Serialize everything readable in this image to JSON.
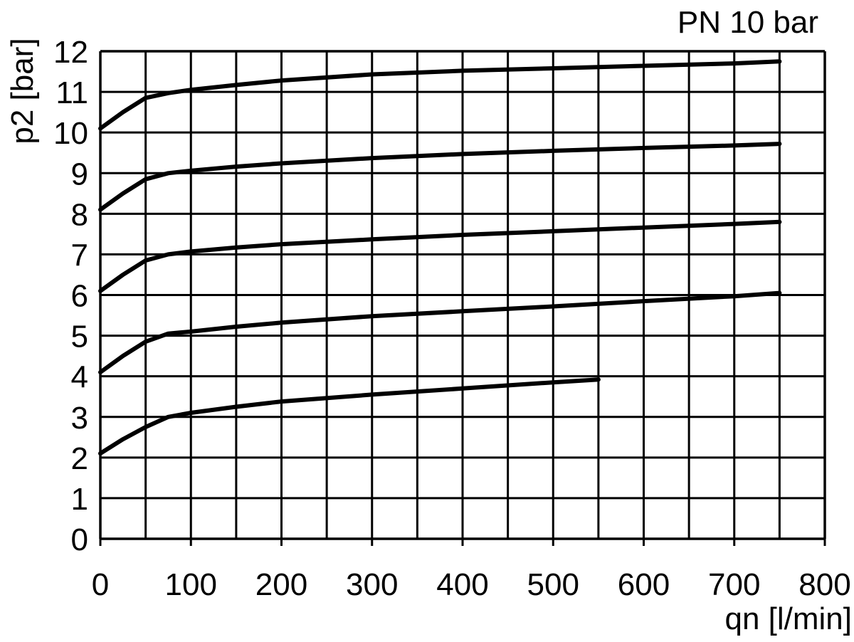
{
  "chart_data": {
    "type": "line",
    "title": "PN 10 bar",
    "xlabel": "qn [l/min]",
    "ylabel": "p2 [bar]",
    "xlim": [
      0,
      800
    ],
    "ylim": [
      0,
      12
    ],
    "x_minor_step": 50,
    "y_step": 1,
    "x_ticks": [
      0,
      100,
      200,
      300,
      400,
      500,
      600,
      700,
      800
    ],
    "y_ticks": [
      0,
      1,
      2,
      3,
      4,
      5,
      6,
      7,
      8,
      9,
      10,
      11,
      12
    ],
    "grid": true,
    "series": [
      {
        "points": [
          [
            0,
            2.1
          ],
          [
            25,
            2.45
          ],
          [
            50,
            2.75
          ],
          [
            75,
            3.0
          ],
          [
            100,
            3.1
          ],
          [
            150,
            3.25
          ],
          [
            200,
            3.38
          ],
          [
            300,
            3.55
          ],
          [
            400,
            3.7
          ],
          [
            500,
            3.85
          ],
          [
            550,
            3.92
          ]
        ]
      },
      {
        "points": [
          [
            0,
            4.1
          ],
          [
            25,
            4.5
          ],
          [
            50,
            4.85
          ],
          [
            75,
            5.05
          ],
          [
            100,
            5.1
          ],
          [
            150,
            5.22
          ],
          [
            200,
            5.32
          ],
          [
            300,
            5.48
          ],
          [
            400,
            5.6
          ],
          [
            500,
            5.72
          ],
          [
            600,
            5.85
          ],
          [
            700,
            5.97
          ],
          [
            750,
            6.05
          ]
        ]
      },
      {
        "points": [
          [
            0,
            6.1
          ],
          [
            25,
            6.5
          ],
          [
            50,
            6.85
          ],
          [
            75,
            7.0
          ],
          [
            100,
            7.07
          ],
          [
            150,
            7.17
          ],
          [
            200,
            7.25
          ],
          [
            300,
            7.37
          ],
          [
            400,
            7.48
          ],
          [
            500,
            7.57
          ],
          [
            600,
            7.66
          ],
          [
            700,
            7.75
          ],
          [
            750,
            7.8
          ]
        ]
      },
      {
        "points": [
          [
            0,
            8.1
          ],
          [
            25,
            8.5
          ],
          [
            50,
            8.85
          ],
          [
            75,
            9.0
          ],
          [
            100,
            9.06
          ],
          [
            150,
            9.16
          ],
          [
            200,
            9.24
          ],
          [
            300,
            9.37
          ],
          [
            400,
            9.47
          ],
          [
            500,
            9.55
          ],
          [
            600,
            9.62
          ],
          [
            700,
            9.68
          ],
          [
            750,
            9.72
          ]
        ]
      },
      {
        "points": [
          [
            0,
            10.1
          ],
          [
            25,
            10.5
          ],
          [
            50,
            10.85
          ],
          [
            75,
            10.97
          ],
          [
            100,
            11.05
          ],
          [
            150,
            11.17
          ],
          [
            200,
            11.28
          ],
          [
            300,
            11.43
          ],
          [
            400,
            11.52
          ],
          [
            500,
            11.58
          ],
          [
            600,
            11.64
          ],
          [
            700,
            11.7
          ],
          [
            750,
            11.75
          ]
        ]
      }
    ]
  }
}
